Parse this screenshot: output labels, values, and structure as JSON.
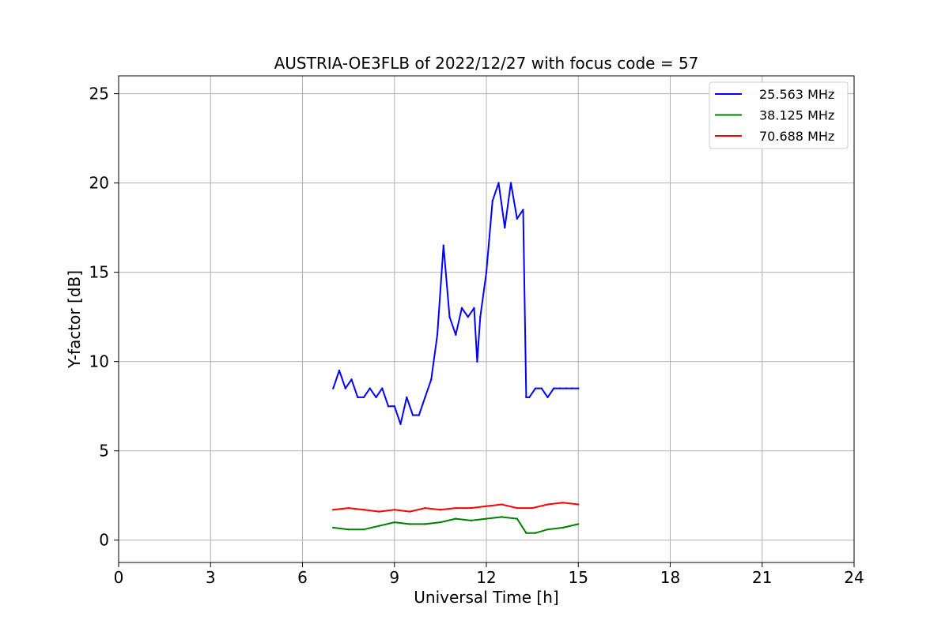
{
  "chart_data": {
    "type": "line",
    "title": "AUSTRIA-OE3FLB of 2022/12/27 with focus code = 57",
    "xlabel": "Universal Time [h]",
    "ylabel": "Y-factor [dB]",
    "xlim": [
      0,
      24
    ],
    "ylim": [
      -1.25,
      26
    ],
    "xticks": [
      0,
      3,
      6,
      9,
      12,
      15,
      18,
      21,
      24
    ],
    "yticks": [
      0,
      5,
      10,
      15,
      20,
      25
    ],
    "grid": true,
    "legend_position": "top-right",
    "series": [
      {
        "name": "25.563 MHz",
        "color": "#0000ff",
        "x": [
          7.0,
          7.2,
          7.4,
          7.6,
          7.8,
          8.0,
          8.2,
          8.4,
          8.6,
          8.8,
          9.0,
          9.2,
          9.4,
          9.6,
          9.8,
          10.0,
          10.2,
          10.4,
          10.6,
          10.8,
          11.0,
          11.2,
          11.4,
          11.6,
          11.7,
          11.8,
          12.0,
          12.2,
          12.4,
          12.6,
          12.8,
          13.0,
          13.2,
          13.3,
          13.4,
          13.6,
          13.8,
          14.0,
          14.2,
          14.4,
          14.6,
          14.8,
          15.0
        ],
        "values": [
          8.5,
          9.5,
          8.5,
          9.0,
          8.0,
          8.0,
          8.5,
          8.0,
          8.5,
          7.5,
          7.5,
          6.5,
          8.0,
          7.0,
          7.0,
          8.0,
          9.0,
          11.5,
          16.5,
          12.5,
          11.5,
          13.0,
          12.5,
          13.0,
          10.0,
          12.5,
          15.0,
          19.0,
          20.0,
          17.5,
          20.0,
          18.0,
          18.5,
          8.0,
          8.0,
          8.5,
          8.5,
          8.0,
          8.5,
          8.5,
          8.5,
          8.5,
          8.5
        ]
      },
      {
        "name": "38.125 MHz",
        "color": "#008000",
        "x": [
          7.0,
          7.5,
          8.0,
          8.5,
          9.0,
          9.5,
          10.0,
          10.5,
          11.0,
          11.5,
          12.0,
          12.5,
          13.0,
          13.3,
          13.6,
          14.0,
          14.5,
          15.0
        ],
        "values": [
          0.7,
          0.6,
          0.6,
          0.8,
          1.0,
          0.9,
          0.9,
          1.0,
          1.2,
          1.1,
          1.2,
          1.3,
          1.2,
          0.4,
          0.4,
          0.6,
          0.7,
          0.9
        ]
      },
      {
        "name": "70.688 MHz",
        "color": "#ff0000",
        "x": [
          7.0,
          7.5,
          8.0,
          8.5,
          9.0,
          9.5,
          10.0,
          10.5,
          11.0,
          11.5,
          12.0,
          12.5,
          13.0,
          13.5,
          14.0,
          14.5,
          15.0
        ],
        "values": [
          1.7,
          1.8,
          1.7,
          1.6,
          1.7,
          1.6,
          1.8,
          1.7,
          1.8,
          1.8,
          1.9,
          2.0,
          1.8,
          1.8,
          2.0,
          2.1,
          2.0
        ]
      }
    ]
  }
}
